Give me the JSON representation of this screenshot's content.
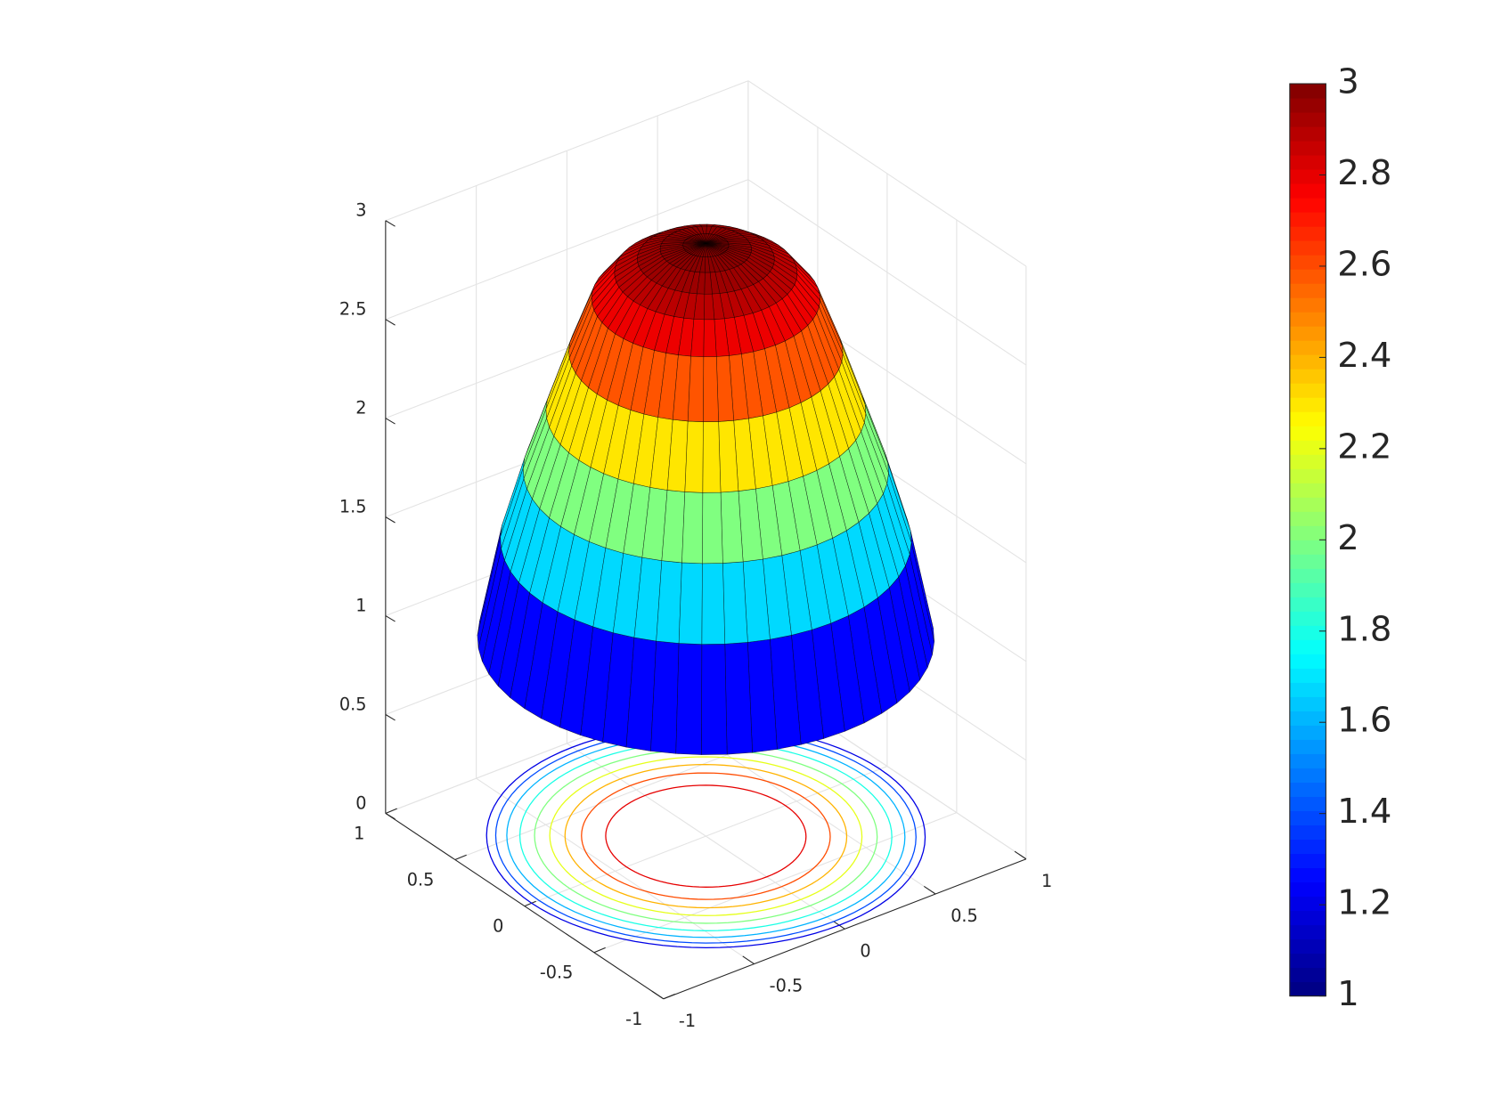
{
  "chart_data": {
    "type": "surface",
    "xlim": [
      -1,
      1
    ],
    "ylim": [
      -1,
      1
    ],
    "zlim": [
      0,
      3
    ],
    "xticks": [
      -1,
      -0.5,
      0,
      0.5,
      1
    ],
    "yticks": [
      -1,
      -0.5,
      0,
      0.5,
      1
    ],
    "zticks": [
      0,
      0.5,
      1,
      1.5,
      2,
      2.5,
      3
    ],
    "grid": true,
    "colormap": "jet",
    "edge_color": "#000000",
    "r": [
      0,
      0.1,
      0.2,
      0.3,
      0.4,
      0.5,
      0.6,
      0.7,
      0.8,
      0.9,
      1
    ],
    "z": [
      3,
      2.99,
      2.97,
      2.92,
      2.85,
      2.72,
      2.45,
      2.15,
      1.85,
      1.5,
      1.0
    ],
    "contour_levels": [
      1.2,
      1.4,
      1.6,
      1.8,
      2,
      2.2,
      2.4,
      2.6,
      2.8
    ],
    "clim": [
      1,
      3
    ],
    "colorbar_ticks": [
      1,
      1.2,
      1.4,
      1.6,
      1.8,
      2,
      2.2,
      2.4,
      2.6,
      2.8,
      3
    ]
  }
}
